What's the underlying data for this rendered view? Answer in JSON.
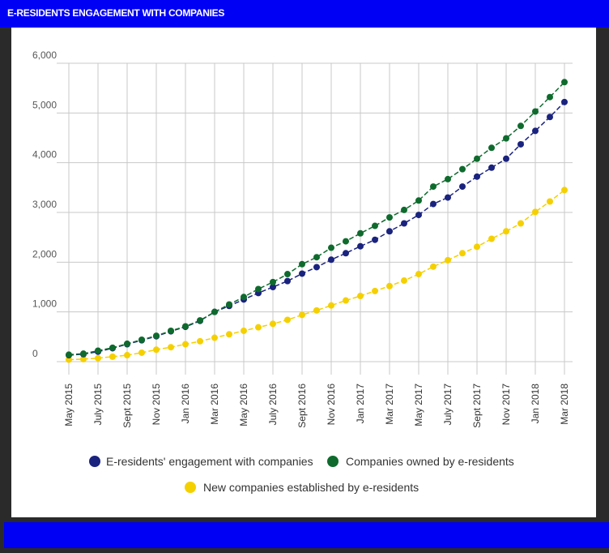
{
  "header": {
    "title": "E-RESIDENTS ENGAGEMENT WITH COMPANIES"
  },
  "colors": {
    "header_bg": "#0000f5",
    "grid": "#c8c8c8",
    "series_engagement": "#1a237e",
    "series_owned": "#0e6b2d",
    "series_new": "#f5d000"
  },
  "chart_data": {
    "type": "line",
    "title": "",
    "xlabel": "",
    "ylabel": "",
    "ylim": [
      0,
      6000
    ],
    "y_ticks": [
      "0",
      "1,000",
      "2,000",
      "3,000",
      "4,000",
      "5,000",
      "6,000"
    ],
    "y_tick_values": [
      0,
      1000,
      2000,
      3000,
      4000,
      5000,
      6000
    ],
    "grid": true,
    "legend_position": "bottom",
    "x_tick_labels": [
      "May 2015",
      "July 2015",
      "Sept 2015",
      "Nov 2015",
      "Jan 2016",
      "Mar 2016",
      "May 2016",
      "July 2016",
      "Sept 2016",
      "Nov 2016",
      "Jan 2017",
      "Mar 2017",
      "May 2017",
      "July 2017",
      "Sept 2017",
      "Nov 2017",
      "Jan 2018",
      "Mar 2018"
    ],
    "x": [
      "May 2015",
      "Jun 2015",
      "July 2015",
      "Aug 2015",
      "Sept 2015",
      "Oct 2015",
      "Nov 2015",
      "Dec 2015",
      "Jan 2016",
      "Feb 2016",
      "Mar 2016",
      "Apr 2016",
      "May 2016",
      "Jun 2016",
      "July 2016",
      "Aug 2016",
      "Sept 2016",
      "Oct 2016",
      "Nov 2016",
      "Dec 2016",
      "Jan 2017",
      "Feb 2017",
      "Mar 2017",
      "Apr 2017",
      "May 2017",
      "Jun 2017",
      "July 2017",
      "Aug 2017",
      "Sept 2017",
      "Oct 2017",
      "Nov 2017",
      "Dec 2017",
      "Jan 2018",
      "Feb 2018",
      "Mar 2018"
    ],
    "series": [
      {
        "name": "E-residents' engagement with companies",
        "color": "#1a237e",
        "values": [
          130,
          150,
          200,
          270,
          350,
          430,
          510,
          610,
          700,
          820,
          1000,
          1120,
          1250,
          1380,
          1500,
          1620,
          1770,
          1900,
          2050,
          2180,
          2320,
          2450,
          2620,
          2780,
          2950,
          3170,
          3300,
          3520,
          3720,
          3900,
          4080,
          4370,
          4640,
          4920,
          5220
        ]
      },
      {
        "name": "Companies owned by e-residents",
        "color": "#0e6b2d",
        "values": [
          140,
          160,
          220,
          280,
          360,
          440,
          520,
          620,
          710,
          830,
          1000,
          1150,
          1300,
          1460,
          1600,
          1760,
          1960,
          2100,
          2290,
          2420,
          2580,
          2730,
          2900,
          3050,
          3240,
          3520,
          3670,
          3870,
          4080,
          4300,
          4490,
          4740,
          5030,
          5320,
          5620
        ]
      },
      {
        "name": "New companies established by e-residents",
        "color": "#f5d000",
        "values": [
          40,
          50,
          70,
          100,
          130,
          180,
          240,
          290,
          350,
          410,
          480,
          550,
          620,
          690,
          760,
          840,
          940,
          1030,
          1130,
          1230,
          1320,
          1420,
          1520,
          1630,
          1760,
          1910,
          2040,
          2180,
          2310,
          2470,
          2620,
          2780,
          3010,
          3220,
          3450
        ]
      }
    ]
  }
}
